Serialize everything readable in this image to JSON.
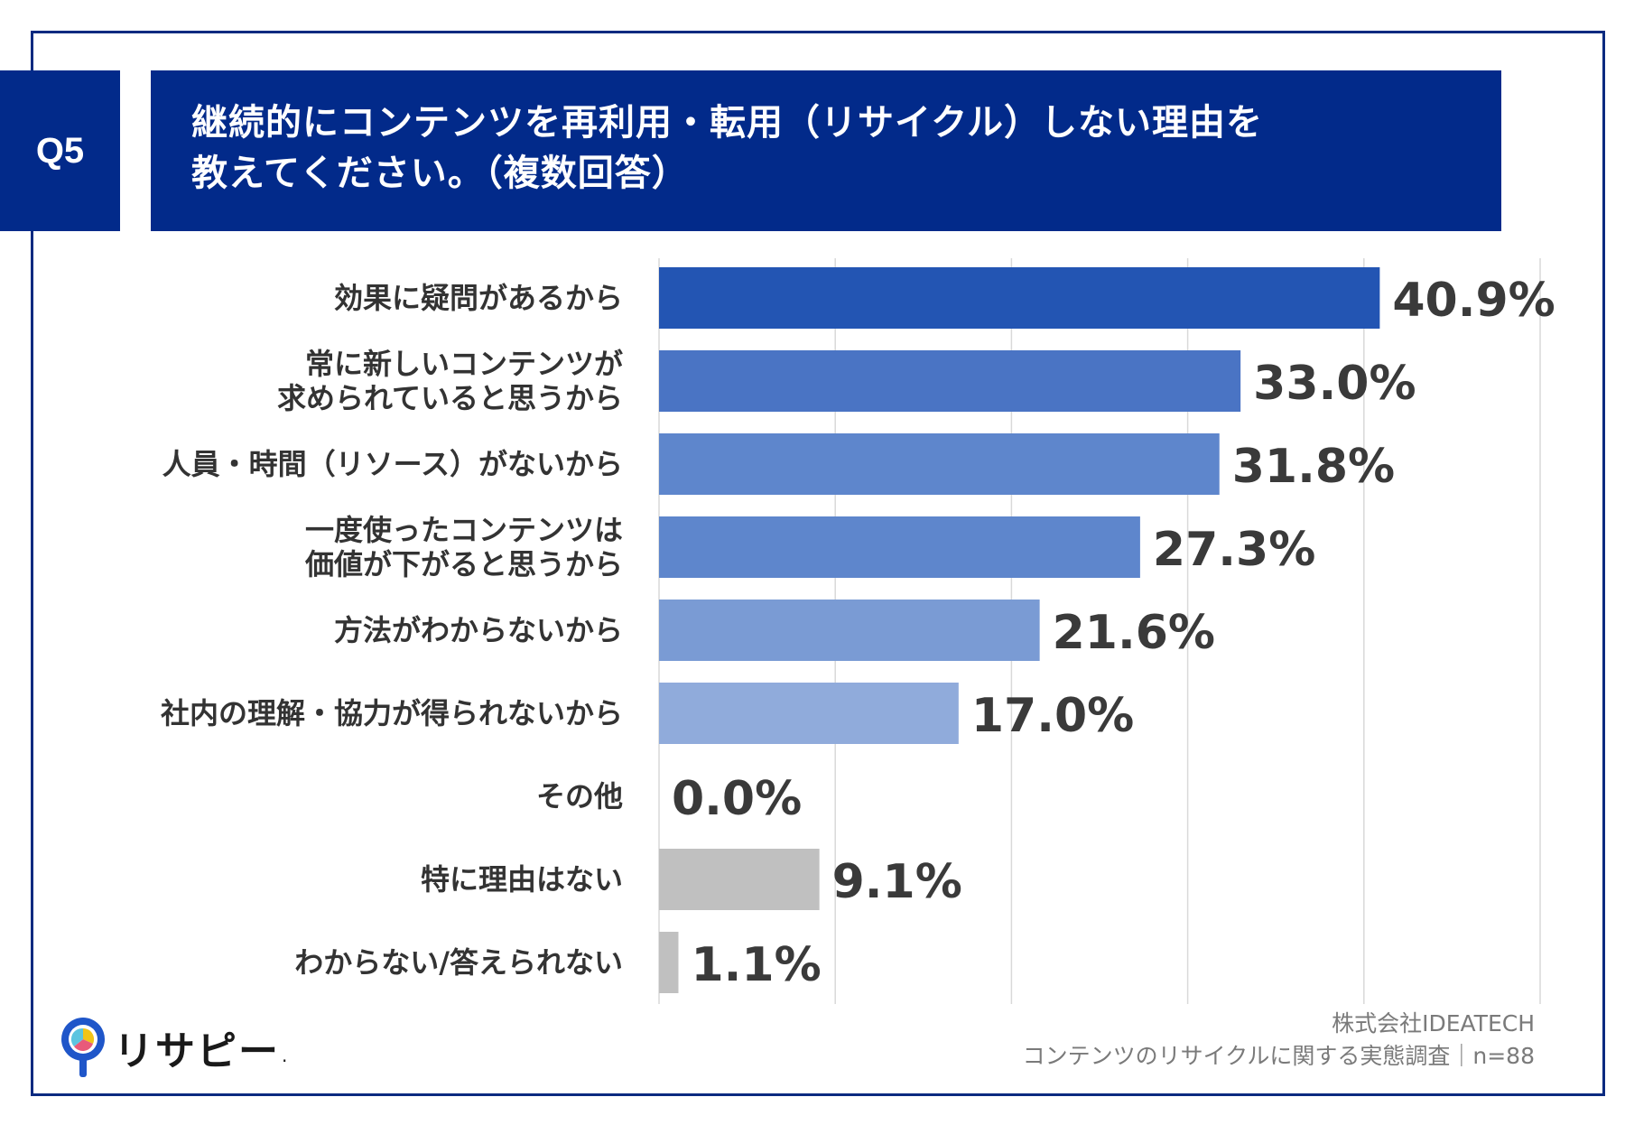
{
  "header": {
    "badge": "Q5",
    "title_line1": "継続的にコンテンツを再利用・転用（リサイクル）しない理由を",
    "title_line2": "教えてください。（複数回答）"
  },
  "chart_data": {
    "type": "bar",
    "orientation": "horizontal",
    "title": "継続的にコンテンツを再利用・転用（リサイクル）しない理由を教えてください。（複数回答）",
    "xlim": [
      0,
      50
    ],
    "grid": true,
    "categories": [
      [
        "効果に疑問があるから"
      ],
      [
        "常に新しいコンテンツが",
        "求められていると思うから"
      ],
      [
        "人員・時間（リソース）がないから"
      ],
      [
        "一度使ったコンテンツは",
        "価値が下がると思うから"
      ],
      [
        "方法がわからないから"
      ],
      [
        "社内の理解・協力が得られないから"
      ],
      [
        "その他"
      ],
      [
        "特に理由はない"
      ],
      [
        "わからない/答えられない"
      ]
    ],
    "values": [
      40.9,
      33.0,
      31.8,
      27.3,
      21.6,
      17.0,
      0.0,
      9.1,
      1.1
    ],
    "value_labels": [
      "40.9%",
      "33.0%",
      "31.8%",
      "27.3%",
      "21.6%",
      "17.0%",
      "0.0%",
      "9.1%",
      "1.1%"
    ],
    "colors": [
      "#2355b3",
      "#4a74c4",
      "#5e86cc",
      "#5e86cc",
      "#7a9bd4",
      "#90abdb",
      "#c0c0c0",
      "#c0c0c0",
      "#c0c0c0"
    ]
  },
  "footer": {
    "company": "株式会社IDEATECH",
    "survey": "コンテンツのリサイクルに関する実態調査｜n=88"
  },
  "logo": {
    "text": "リサピー",
    "dot": "."
  }
}
